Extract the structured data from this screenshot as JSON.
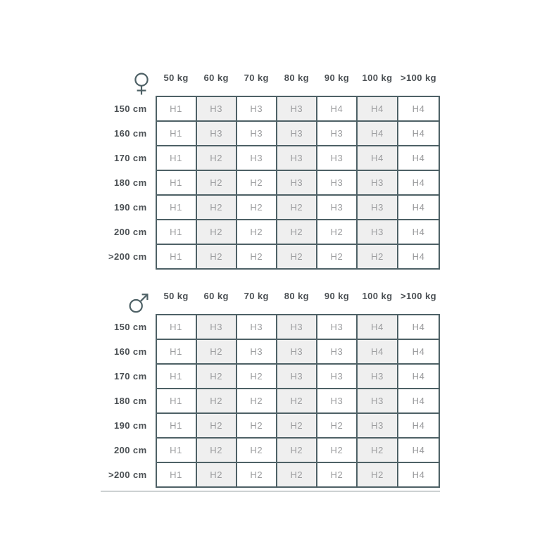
{
  "colors": {
    "grid_border": "#4e6166",
    "label_text": "#4b5054",
    "cell_text": "#9b9c9e",
    "shaded_column_bg": "#efefef",
    "divider": "#cdd1d2",
    "page_bg": "#ffffff"
  },
  "chart_data": [
    {
      "type": "table",
      "title": "Female size chart",
      "gender": "female",
      "gender_symbol": "♀",
      "columns": [
        "50 kg",
        "60 kg",
        "70 kg",
        "80 kg",
        "90 kg",
        "100 kg",
        ">100 kg"
      ],
      "row_labels": [
        "150 cm",
        "160 cm",
        "170 cm",
        "180 cm",
        "190 cm",
        "200 cm",
        ">200 cm"
      ],
      "rows": [
        [
          "H1",
          "H3",
          "H3",
          "H3",
          "H4",
          "H4",
          "H4"
        ],
        [
          "H1",
          "H3",
          "H3",
          "H3",
          "H3",
          "H4",
          "H4"
        ],
        [
          "H1",
          "H2",
          "H3",
          "H3",
          "H3",
          "H4",
          "H4"
        ],
        [
          "H1",
          "H2",
          "H2",
          "H3",
          "H3",
          "H3",
          "H4"
        ],
        [
          "H1",
          "H2",
          "H2",
          "H2",
          "H3",
          "H3",
          "H4"
        ],
        [
          "H1",
          "H2",
          "H2",
          "H2",
          "H2",
          "H3",
          "H4"
        ],
        [
          "H1",
          "H2",
          "H2",
          "H2",
          "H2",
          "H2",
          "H4"
        ]
      ],
      "shaded_columns": [
        1,
        3,
        5
      ]
    },
    {
      "type": "table",
      "title": "Male size chart",
      "gender": "male",
      "gender_symbol": "♂",
      "columns": [
        "50 kg",
        "60 kg",
        "70 kg",
        "80 kg",
        "90 kg",
        "100 kg",
        ">100 kg"
      ],
      "row_labels": [
        "150 cm",
        "160 cm",
        "170 cm",
        "180 cm",
        "190 cm",
        "200 cm",
        ">200 cm"
      ],
      "rows": [
        [
          "H1",
          "H3",
          "H3",
          "H3",
          "H3",
          "H4",
          "H4"
        ],
        [
          "H1",
          "H2",
          "H3",
          "H3",
          "H3",
          "H4",
          "H4"
        ],
        [
          "H1",
          "H2",
          "H2",
          "H3",
          "H3",
          "H3",
          "H4"
        ],
        [
          "H1",
          "H2",
          "H2",
          "H2",
          "H3",
          "H3",
          "H4"
        ],
        [
          "H1",
          "H2",
          "H2",
          "H2",
          "H2",
          "H3",
          "H4"
        ],
        [
          "H1",
          "H2",
          "H2",
          "H2",
          "H2",
          "H2",
          "H4"
        ],
        [
          "H1",
          "H2",
          "H2",
          "H2",
          "H2",
          "H2",
          "H4"
        ]
      ],
      "shaded_columns": [
        1,
        3,
        5
      ]
    }
  ]
}
